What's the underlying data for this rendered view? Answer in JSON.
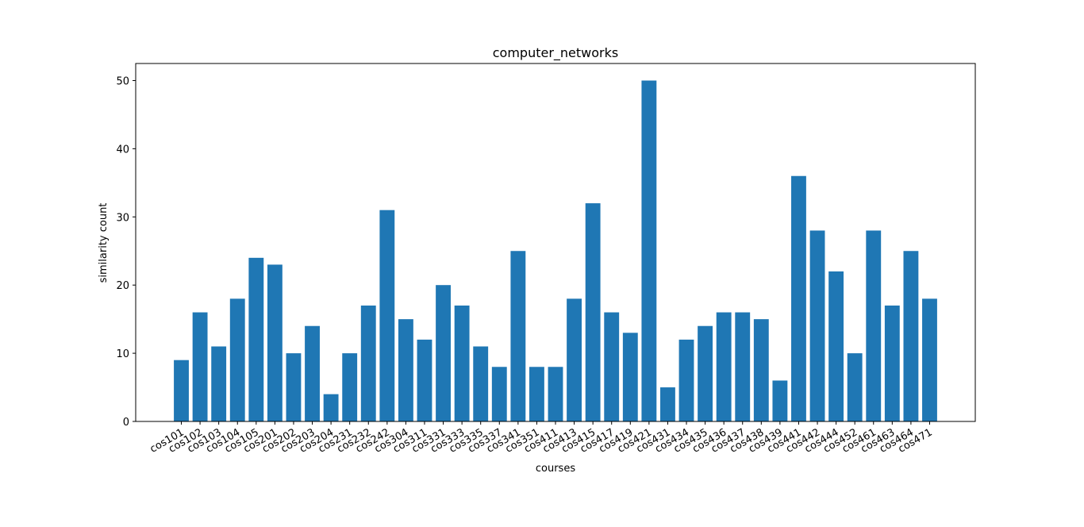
{
  "chart_data": {
    "type": "bar",
    "title": "computer_networks",
    "xlabel": "courses",
    "ylabel": "similarity count",
    "ylim": [
      0,
      52.5
    ],
    "yticks": [
      0,
      10,
      20,
      30,
      40,
      50
    ],
    "grid": false,
    "bar_color": "#1f77b4",
    "categories": [
      "cos101",
      "cos102",
      "cos103",
      "cos104",
      "cos105",
      "cos201",
      "cos202",
      "cos203",
      "cos204",
      "cos231",
      "cos232",
      "cos242",
      "cos304",
      "cos311",
      "cos331",
      "cos333",
      "cos335",
      "cos337",
      "cos341",
      "cos351",
      "cos411",
      "cos413",
      "cos415",
      "cos417",
      "cos419",
      "cos421",
      "cos431",
      "cos434",
      "cos435",
      "cos436",
      "cos437",
      "cos438",
      "cos439",
      "cos441",
      "cos442",
      "cos444",
      "cos452",
      "cos461",
      "cos463",
      "cos464",
      "cos471"
    ],
    "values": [
      9,
      16,
      11,
      18,
      24,
      23,
      10,
      14,
      4,
      10,
      17,
      31,
      15,
      12,
      20,
      17,
      11,
      8,
      25,
      8,
      8,
      18,
      32,
      16,
      13,
      50,
      5,
      12,
      14,
      16,
      16,
      15,
      6,
      36,
      28,
      22,
      10,
      28,
      17,
      25,
      18
    ]
  }
}
